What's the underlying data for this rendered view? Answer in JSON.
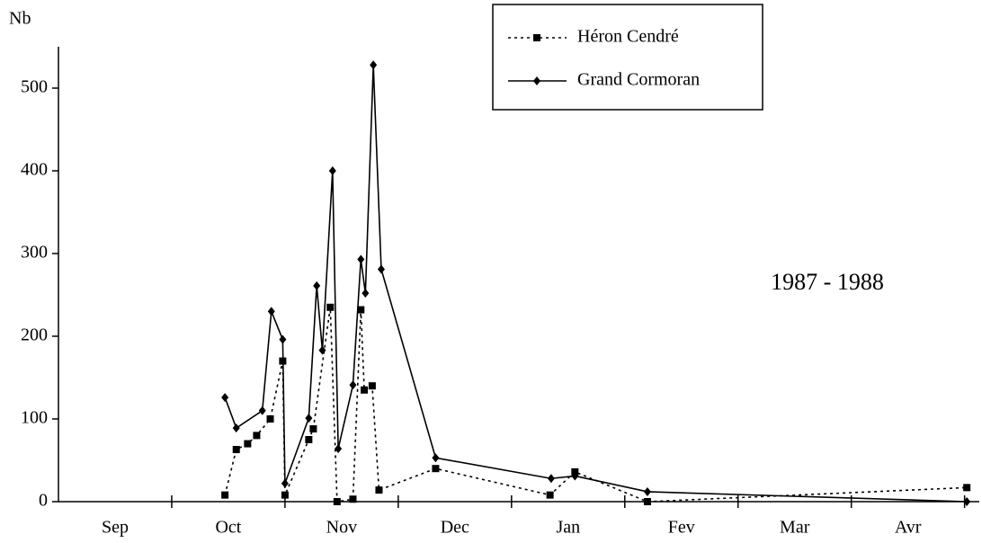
{
  "chart_data": {
    "type": "line",
    "y_label": "Nb",
    "annotation": "1987 - 1988",
    "categories": [
      "Sep",
      "Oct",
      "Nov",
      "Dec",
      "Jan",
      "Fev",
      "Mar",
      "Avr"
    ],
    "xlim": [
      0,
      8.13
    ],
    "ylim": [
      0,
      550
    ],
    "yticks": [
      0,
      100,
      200,
      300,
      400,
      500
    ],
    "legend": "top-right",
    "series": [
      {
        "name": "Héron Cendré",
        "color": "#000000",
        "line_style": "dotted",
        "marker": "square",
        "x": [
          1.47,
          1.57,
          1.67,
          1.75,
          1.87,
          1.98,
          2.0,
          2.21,
          2.25,
          2.4,
          2.46,
          2.6,
          2.67,
          2.7,
          2.77,
          2.83,
          3.33,
          4.34,
          4.56,
          5.2,
          8.02
        ],
        "values": [
          8,
          63,
          70,
          80,
          100,
          170,
          8,
          75,
          88,
          235,
          0,
          3,
          232,
          135,
          140,
          14,
          40,
          8,
          36,
          0,
          17
        ]
      },
      {
        "name": "Grand Cormoran",
        "color": "#000000",
        "line_style": "solid",
        "marker": "diamond",
        "x": [
          1.47,
          1.57,
          1.8,
          1.88,
          1.98,
          2.0,
          2.21,
          2.28,
          2.33,
          2.42,
          2.47,
          2.6,
          2.67,
          2.71,
          2.78,
          2.85,
          3.33,
          4.35,
          4.56,
          5.2,
          8.02
        ],
        "values": [
          126,
          89,
          110,
          230,
          196,
          22,
          101,
          261,
          183,
          400,
          64,
          141,
          293,
          252,
          528,
          281,
          53,
          28,
          31,
          12,
          0
        ]
      }
    ]
  }
}
